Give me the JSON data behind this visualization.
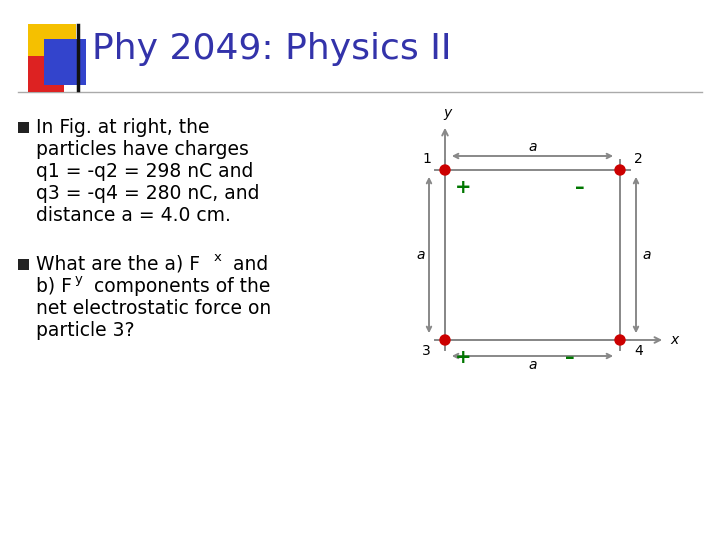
{
  "title": "Phy 2049: Physics II",
  "title_color": "#3333aa",
  "title_fontsize": 26,
  "bg_color": "#ffffff",
  "bullet_color": "#000000",
  "bullet_fontsize": 13.5,
  "square_color": "#888888",
  "dot_color": "#cc0000",
  "plus_color": "#007700",
  "minus_color": "#007700",
  "label_color": "#000000",
  "fig_width": 7.2,
  "fig_height": 5.4,
  "header_yellow": "#f5c000",
  "header_red": "#dd2222",
  "header_blue": "#3344cc",
  "bullet1": [
    "In Fig. at right, the",
    "particles have charges",
    "q1 = -q2 = 298 nC and",
    "q3 = -q4 = 280 nC, and",
    "distance a = 4.0 cm."
  ],
  "bullet2_pre": [
    "What are the a) F",
    "b) F"
  ],
  "bullet2_rest": [
    "  and",
    "  components of the"
  ],
  "bullet2_sub": [
    "x",
    "y"
  ],
  "bullet2_extra": [
    "net electrostatic force on",
    "particle 3?"
  ]
}
